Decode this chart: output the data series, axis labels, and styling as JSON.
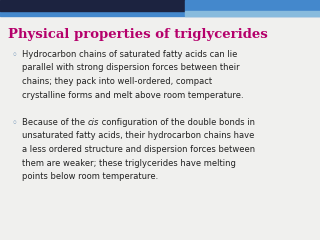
{
  "title": "Physical properties of triglycerides",
  "title_color": "#b5006b",
  "background_color": "#f0f0ee",
  "top_bar_dark_color": "#1c2340",
  "top_bar_blue_color": "#4488cc",
  "top_bar_light_blue": "#88bbdd",
  "bullet_color": "#7799bb",
  "text_color": "#222222",
  "bullet1_lines": [
    "Hydrocarbon chains of saturated fatty acids can lie",
    "parallel with strong dispersion forces between their",
    "chains; they pack into well-ordered, compact",
    "crystalline forms and melt above room temperature."
  ],
  "bullet2_line0_pre": "Because of the ",
  "bullet2_line0_italic": "cis",
  "bullet2_line0_post": " configuration of the double bonds in",
  "bullet2_rest": [
    "unsaturated fatty acids, their hydrocarbon chains have",
    "a less ordered structure and dispersion forces between",
    "them are weaker; these triglycerides have melting",
    "points below room temperature."
  ],
  "title_fontsize": 9.5,
  "body_fontsize": 6.0,
  "bullet_fontsize": 7.0,
  "figwidth": 3.2,
  "figheight": 2.4,
  "dpi": 100
}
